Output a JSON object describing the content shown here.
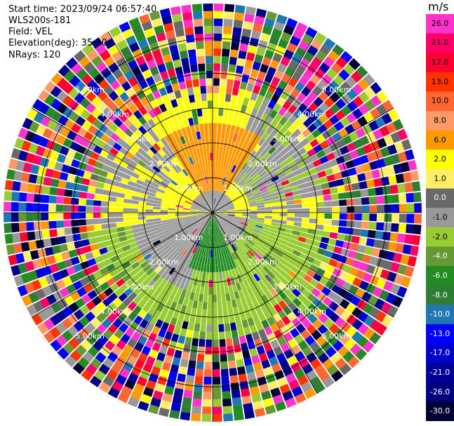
{
  "info": {
    "start_time": "Start time: 2023/09/24 06:57:40",
    "site": "WLS200s-181",
    "field": "Field: VEL",
    "elevation": "Elevation(deg): 35.30",
    "nrays": "NRays: 120"
  },
  "colorbar": {
    "unit": "m/s",
    "ticks": [
      "26.0",
      "21.0",
      "17.0",
      "13.0",
      "10.0",
      "8.0",
      "6.0",
      "2.0",
      "1.0",
      "0.0",
      "-1.0",
      "-2.0",
      "-4.0",
      "-6.0",
      "-8.0",
      "-10.0",
      "-13.0",
      "-17.0",
      "-21.0",
      "-26.0",
      "-30.0"
    ],
    "colors": [
      "#ff33cc",
      "#ff0066",
      "#ff0033",
      "#ff3300",
      "#ff6633",
      "#ff9966",
      "#ff9900",
      "#ffff00",
      "#ffee66",
      "#696969",
      "#999999",
      "#99cc33",
      "#669933",
      "#228b22",
      "#2e7d32",
      "#1f77b4",
      "#0000ff",
      "#0000cc",
      "#000099",
      "#000080",
      "#000033"
    ]
  },
  "chart_data": {
    "type": "polar",
    "field": "VEL",
    "nrays": 120,
    "elevation_deg": 35.3,
    "range_rings_km": [
      1.0,
      2.0,
      3.0,
      4.0,
      5.0
    ],
    "range_labels": [
      "1.00km",
      "2.00km",
      "3.00km",
      "4.00km",
      "5.00km"
    ],
    "azimuth_lines_deg": [
      0,
      30,
      60,
      90,
      120,
      150,
      180,
      210,
      240,
      270,
      300,
      330
    ]
  }
}
